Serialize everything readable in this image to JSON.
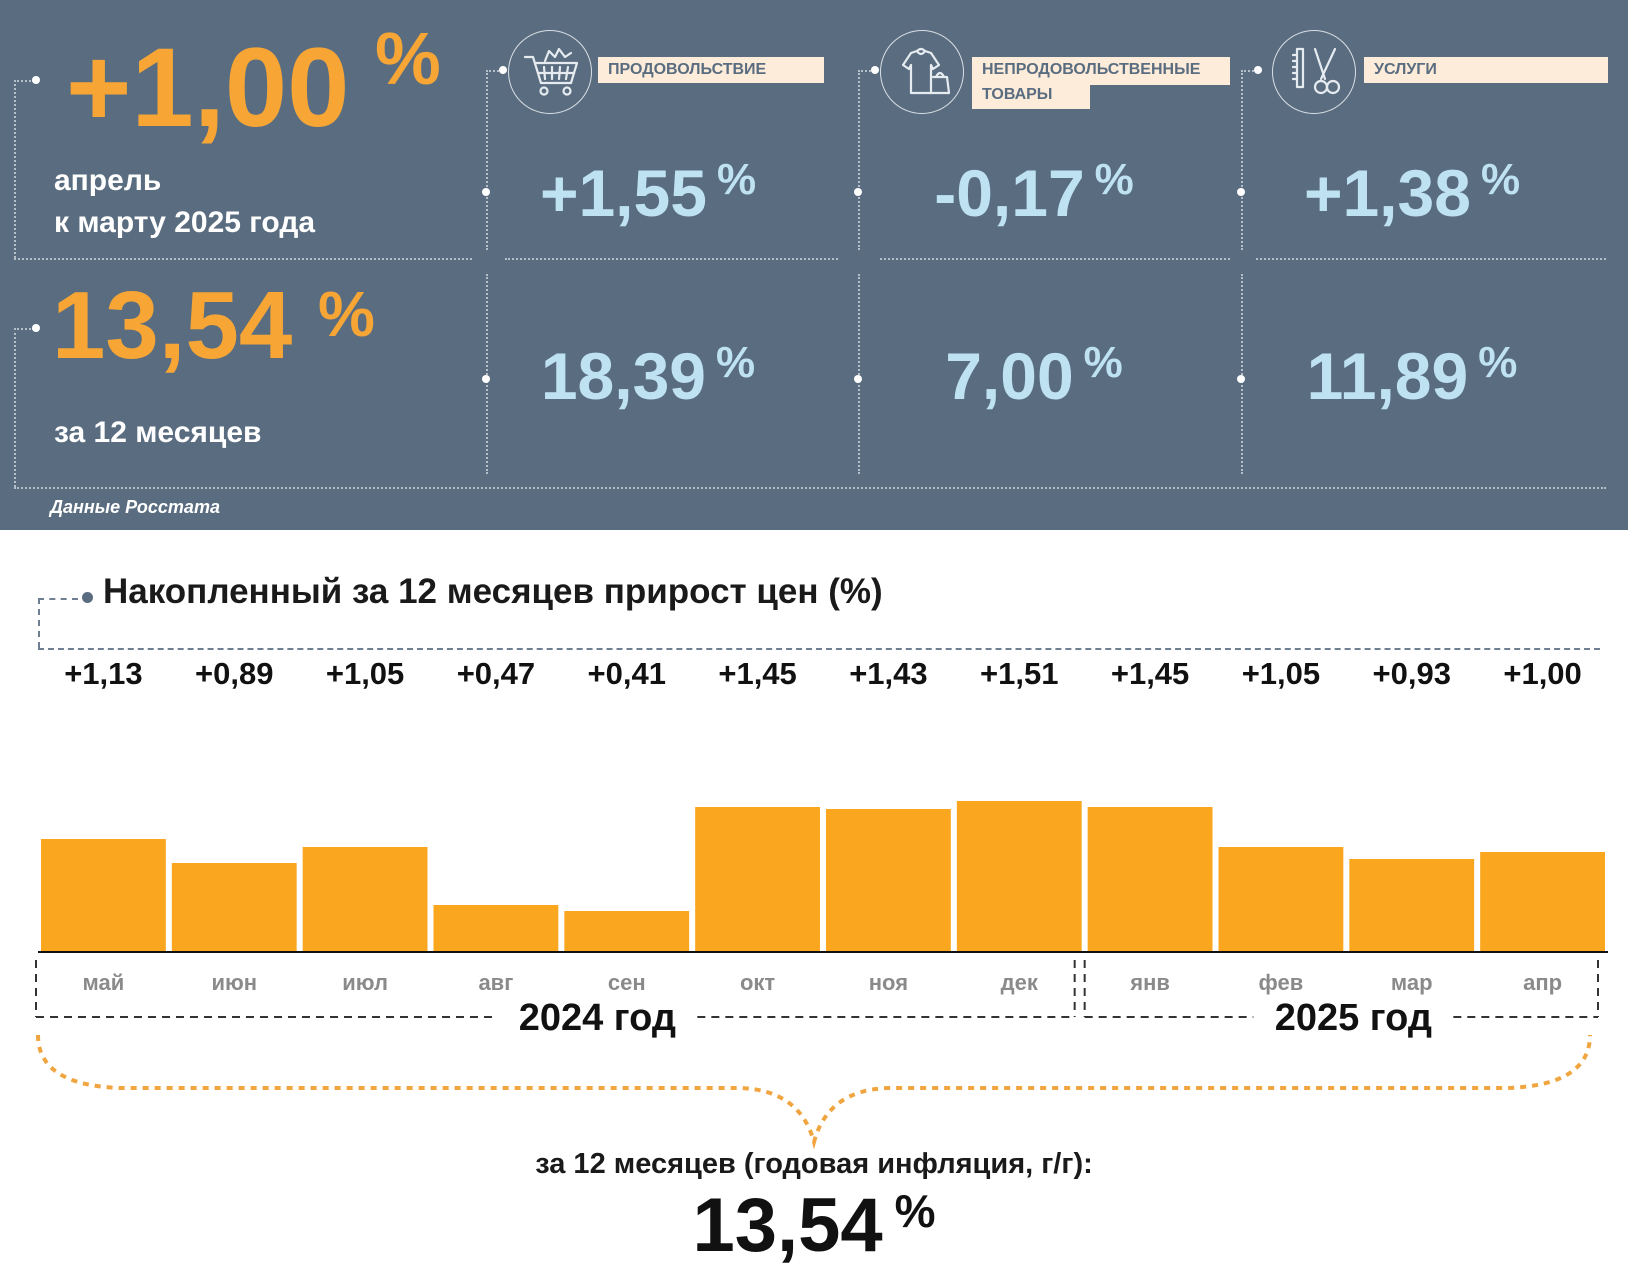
{
  "summary": {
    "monthly_value": "+1,00",
    "monthly_pct": "%",
    "monthly_caption_line1": "апрель",
    "monthly_caption_line2": "к марту 2025 года",
    "annual_value": "13,54",
    "annual_pct": "%",
    "annual_caption": "за 12 месяцев",
    "source": "Данные Росстата"
  },
  "categories": [
    {
      "id": "food",
      "icon": "shopping-cart-icon",
      "label": "ПРОДОВОЛЬСТВИЕ",
      "label_line2": "",
      "monthly": "+1,55",
      "annual": "18,39",
      "pct": "%"
    },
    {
      "id": "nonfood",
      "icon": "clothing-bag-icon",
      "label": "НЕПРОДОВОЛЬСТВЕННЫЕ",
      "label_line2": "ТОВАРЫ",
      "monthly": "-0,17",
      "annual": "7,00",
      "pct": "%"
    },
    {
      "id": "services",
      "icon": "scissors-comb-icon",
      "label": "УСЛУГИ",
      "label_line2": "",
      "monthly": "+1,38",
      "annual": "11,89",
      "pct": "%"
    }
  ],
  "chart_data": {
    "type": "bar",
    "title": "Накопленный за 12 месяцев прирост цен (%)",
    "categories": [
      "май",
      "июн",
      "июл",
      "авг",
      "сен",
      "окт",
      "ноя",
      "дек",
      "янв",
      "фев",
      "мар",
      "апр"
    ],
    "values": [
      1.13,
      0.89,
      1.05,
      0.47,
      0.41,
      1.45,
      1.43,
      1.51,
      1.45,
      1.05,
      0.93,
      1.0
    ],
    "value_labels": [
      "+1,13",
      "+0,89",
      "+1,05",
      "+0,47",
      "+0,41",
      "+1,45",
      "+1,43",
      "+1,51",
      "+1,45",
      "+1,05",
      "+0,93",
      "+1,00"
    ],
    "groups": [
      {
        "label": "2024 год",
        "months": [
          "май",
          "июн",
          "июл",
          "авг",
          "сен",
          "окт",
          "ноя",
          "дек"
        ]
      },
      {
        "label": "2025 год",
        "months": [
          "янв",
          "фев",
          "мар",
          "апр"
        ]
      }
    ],
    "bar_color": "#faa61e",
    "grid": false,
    "annual_caption": "за 12 месяцев (годовая инфляция, г/г):",
    "annual_value": "13,54",
    "annual_pct": "%"
  },
  "colors": {
    "panel_bg": "#5a6d80",
    "accent_orange": "#f7a635",
    "metric_blue": "#bfe2f3",
    "badge_bg": "#fcecd9"
  }
}
